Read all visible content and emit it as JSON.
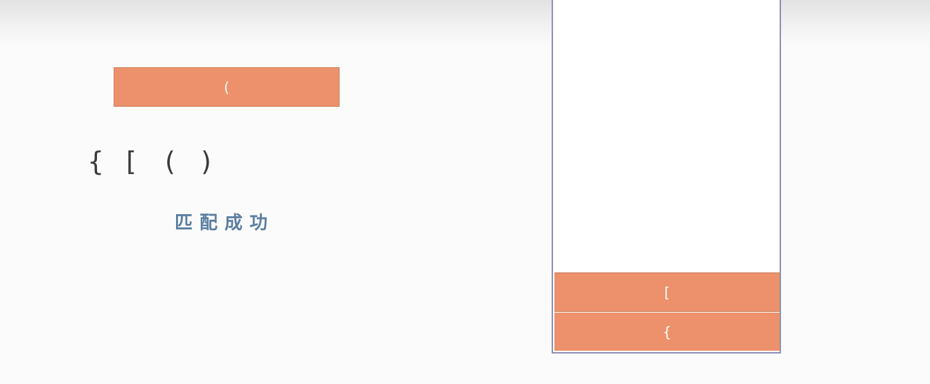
{
  "popped_bracket": "(",
  "sequence": [
    "{",
    "[",
    "(",
    ")"
  ],
  "status_text": "匹配成功",
  "stack_items": [
    "[",
    "{"
  ],
  "colors": {
    "block_fill": "#ec916b",
    "stack_border": "#8d8db4",
    "status_text": "#5b7fa1",
    "sequence_text": "#3a3a3a"
  }
}
